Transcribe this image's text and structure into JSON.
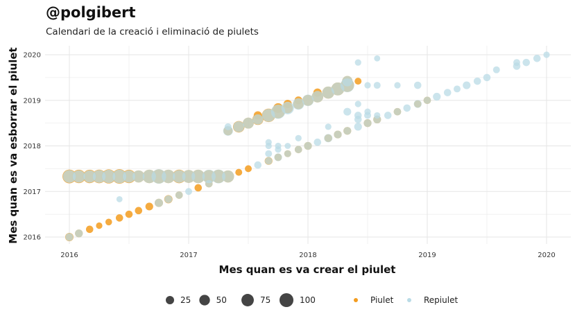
{
  "header": {
    "title": "@polgibert",
    "subtitle": "Calendari de la creació i eliminació de piulets"
  },
  "colors": {
    "piulet": "#f39c1f",
    "repiulet": "#b9dbe6",
    "overlap": "#c5c5a8",
    "grid": "#e5e5e5"
  },
  "chart_data": {
    "type": "scatter",
    "xlabel": "Mes quan es va crear el piulet",
    "ylabel": "Mes quan es va esborrar el piulet",
    "xlim": [
      2016,
      2020
    ],
    "ylim": [
      2016,
      2020
    ],
    "xticks": [
      "2016",
      "2017",
      "2018",
      "2019",
      "2020"
    ],
    "yticks": [
      "2016",
      "2017",
      "2018",
      "2019",
      "2020"
    ],
    "grid": true,
    "size_legend": {
      "values": [
        25,
        50,
        75,
        100
      ]
    },
    "color_legend": [
      "Piulet",
      "Repiulet"
    ],
    "series": [
      {
        "name": "Piulet",
        "points": [
          {
            "x": 2016.0,
            "y": 2017.33,
            "s": 65
          },
          {
            "x": 2016.08,
            "y": 2017.33,
            "s": 60
          },
          {
            "x": 2016.17,
            "y": 2017.33,
            "s": 60
          },
          {
            "x": 2016.25,
            "y": 2017.33,
            "s": 62
          },
          {
            "x": 2016.33,
            "y": 2017.33,
            "s": 70
          },
          {
            "x": 2016.42,
            "y": 2017.33,
            "s": 75
          },
          {
            "x": 2016.5,
            "y": 2017.33,
            "s": 60
          },
          {
            "x": 2016.58,
            "y": 2017.33,
            "s": 45
          },
          {
            "x": 2016.67,
            "y": 2017.33,
            "s": 60
          },
          {
            "x": 2016.75,
            "y": 2017.33,
            "s": 70
          },
          {
            "x": 2016.83,
            "y": 2017.33,
            "s": 60
          },
          {
            "x": 2016.92,
            "y": 2017.33,
            "s": 62
          },
          {
            "x": 2017.0,
            "y": 2017.33,
            "s": 55
          },
          {
            "x": 2017.08,
            "y": 2017.33,
            "s": 60
          },
          {
            "x": 2017.17,
            "y": 2017.33,
            "s": 55
          },
          {
            "x": 2017.25,
            "y": 2017.33,
            "s": 60
          },
          {
            "x": 2017.33,
            "y": 2017.33,
            "s": 45
          },
          {
            "x": 2016.0,
            "y": 2016.0,
            "s": 15
          },
          {
            "x": 2016.08,
            "y": 2016.08,
            "s": 12
          },
          {
            "x": 2016.17,
            "y": 2016.17,
            "s": 10
          },
          {
            "x": 2016.25,
            "y": 2016.25,
            "s": 6
          },
          {
            "x": 2016.33,
            "y": 2016.33,
            "s": 7
          },
          {
            "x": 2016.42,
            "y": 2016.42,
            "s": 10
          },
          {
            "x": 2016.5,
            "y": 2016.5,
            "s": 10
          },
          {
            "x": 2016.58,
            "y": 2016.58,
            "s": 10
          },
          {
            "x": 2016.67,
            "y": 2016.67,
            "s": 12
          },
          {
            "x": 2016.75,
            "y": 2016.75,
            "s": 15
          },
          {
            "x": 2016.83,
            "y": 2016.83,
            "s": 15
          },
          {
            "x": 2016.92,
            "y": 2016.92,
            "s": 10
          },
          {
            "x": 2017.08,
            "y": 2017.08,
            "s": 10
          },
          {
            "x": 2017.17,
            "y": 2017.17,
            "s": 10
          },
          {
            "x": 2017.33,
            "y": 2018.33,
            "s": 20
          },
          {
            "x": 2017.42,
            "y": 2018.42,
            "s": 40
          },
          {
            "x": 2017.5,
            "y": 2018.5,
            "s": 35
          },
          {
            "x": 2017.58,
            "y": 2018.58,
            "s": 35
          },
          {
            "x": 2017.58,
            "y": 2018.67,
            "s": 15
          },
          {
            "x": 2017.67,
            "y": 2018.67,
            "s": 60
          },
          {
            "x": 2017.75,
            "y": 2018.75,
            "s": 60
          },
          {
            "x": 2017.75,
            "y": 2018.83,
            "s": 25
          },
          {
            "x": 2017.83,
            "y": 2018.83,
            "s": 30
          },
          {
            "x": 2017.83,
            "y": 2018.92,
            "s": 15
          },
          {
            "x": 2017.92,
            "y": 2018.92,
            "s": 30
          },
          {
            "x": 2017.92,
            "y": 2019.0,
            "s": 12
          },
          {
            "x": 2018.0,
            "y": 2019.0,
            "s": 35
          },
          {
            "x": 2018.08,
            "y": 2019.08,
            "s": 40
          },
          {
            "x": 2018.08,
            "y": 2019.17,
            "s": 15
          },
          {
            "x": 2018.17,
            "y": 2019.17,
            "s": 45
          },
          {
            "x": 2018.25,
            "y": 2019.25,
            "s": 55
          },
          {
            "x": 2018.33,
            "y": 2019.33,
            "s": 60
          },
          {
            "x": 2018.33,
            "y": 2019.42,
            "s": 30
          },
          {
            "x": 2018.42,
            "y": 2019.42,
            "s": 8
          },
          {
            "x": 2017.42,
            "y": 2017.42,
            "s": 8
          },
          {
            "x": 2017.5,
            "y": 2017.5,
            "s": 8
          },
          {
            "x": 2017.67,
            "y": 2017.67,
            "s": 12
          },
          {
            "x": 2017.75,
            "y": 2017.75,
            "s": 10
          },
          {
            "x": 2017.83,
            "y": 2017.83,
            "s": 8
          },
          {
            "x": 2017.92,
            "y": 2017.92,
            "s": 10
          },
          {
            "x": 2018.0,
            "y": 2018.0,
            "s": 12
          },
          {
            "x": 2018.17,
            "y": 2018.17,
            "s": 12
          },
          {
            "x": 2018.25,
            "y": 2018.25,
            "s": 12
          },
          {
            "x": 2018.33,
            "y": 2018.33,
            "s": 12
          },
          {
            "x": 2018.5,
            "y": 2018.5,
            "s": 12
          },
          {
            "x": 2018.58,
            "y": 2018.58,
            "s": 12
          },
          {
            "x": 2018.75,
            "y": 2018.75,
            "s": 10
          },
          {
            "x": 2018.92,
            "y": 2018.92,
            "s": 10
          },
          {
            "x": 2019.0,
            "y": 2019.0,
            "s": 10
          }
        ]
      },
      {
        "name": "Repiulet",
        "points": [
          {
            "x": 2016.0,
            "y": 2017.33,
            "s": 55
          },
          {
            "x": 2016.08,
            "y": 2017.33,
            "s": 50
          },
          {
            "x": 2016.17,
            "y": 2017.33,
            "s": 50
          },
          {
            "x": 2016.25,
            "y": 2017.33,
            "s": 55
          },
          {
            "x": 2016.33,
            "y": 2017.33,
            "s": 60
          },
          {
            "x": 2016.42,
            "y": 2017.33,
            "s": 65
          },
          {
            "x": 2016.5,
            "y": 2017.33,
            "s": 50
          },
          {
            "x": 2016.58,
            "y": 2017.33,
            "s": 45
          },
          {
            "x": 2016.67,
            "y": 2017.33,
            "s": 60
          },
          {
            "x": 2016.75,
            "y": 2017.33,
            "s": 75
          },
          {
            "x": 2016.83,
            "y": 2017.33,
            "s": 60
          },
          {
            "x": 2016.92,
            "y": 2017.33,
            "s": 55
          },
          {
            "x": 2017.0,
            "y": 2017.33,
            "s": 55
          },
          {
            "x": 2017.08,
            "y": 2017.33,
            "s": 60
          },
          {
            "x": 2017.17,
            "y": 2017.33,
            "s": 60
          },
          {
            "x": 2017.25,
            "y": 2017.33,
            "s": 65
          },
          {
            "x": 2017.33,
            "y": 2017.33,
            "s": 45
          },
          {
            "x": 2016.0,
            "y": 2016.0,
            "s": 12
          },
          {
            "x": 2016.08,
            "y": 2016.08,
            "s": 12
          },
          {
            "x": 2016.42,
            "y": 2016.83,
            "s": 5
          },
          {
            "x": 2016.75,
            "y": 2016.75,
            "s": 15
          },
          {
            "x": 2016.83,
            "y": 2016.83,
            "s": 12
          },
          {
            "x": 2016.92,
            "y": 2016.92,
            "s": 10
          },
          {
            "x": 2017.0,
            "y": 2017.0,
            "s": 8
          },
          {
            "x": 2017.17,
            "y": 2017.17,
            "s": 10
          },
          {
            "x": 2017.33,
            "y": 2018.33,
            "s": 25
          },
          {
            "x": 2017.33,
            "y": 2018.42,
            "s": 8
          },
          {
            "x": 2017.42,
            "y": 2018.42,
            "s": 35
          },
          {
            "x": 2017.5,
            "y": 2018.5,
            "s": 35
          },
          {
            "x": 2017.58,
            "y": 2018.58,
            "s": 30
          },
          {
            "x": 2017.67,
            "y": 2018.67,
            "s": 55
          },
          {
            "x": 2017.75,
            "y": 2018.75,
            "s": 70
          },
          {
            "x": 2017.83,
            "y": 2018.83,
            "s": 50
          },
          {
            "x": 2017.92,
            "y": 2018.92,
            "s": 40
          },
          {
            "x": 2018.0,
            "y": 2019.0,
            "s": 40
          },
          {
            "x": 2018.08,
            "y": 2019.08,
            "s": 40
          },
          {
            "x": 2018.17,
            "y": 2019.17,
            "s": 45
          },
          {
            "x": 2018.25,
            "y": 2019.25,
            "s": 55
          },
          {
            "x": 2018.33,
            "y": 2019.33,
            "s": 65
          },
          {
            "x": 2018.33,
            "y": 2019.42,
            "s": 30
          },
          {
            "x": 2018.42,
            "y": 2019.83,
            "s": 6
          },
          {
            "x": 2018.58,
            "y": 2019.92,
            "s": 5
          },
          {
            "x": 2018.5,
            "y": 2019.33,
            "s": 6
          },
          {
            "x": 2018.58,
            "y": 2019.33,
            "s": 8
          },
          {
            "x": 2018.75,
            "y": 2019.33,
            "s": 6
          },
          {
            "x": 2018.92,
            "y": 2019.33,
            "s": 10
          },
          {
            "x": 2017.58,
            "y": 2017.58,
            "s": 10
          },
          {
            "x": 2017.67,
            "y": 2017.67,
            "s": 10
          },
          {
            "x": 2017.67,
            "y": 2017.83,
            "s": 8
          },
          {
            "x": 2017.67,
            "y": 2018.0,
            "s": 6
          },
          {
            "x": 2017.67,
            "y": 2018.08,
            "s": 6
          },
          {
            "x": 2017.75,
            "y": 2017.75,
            "s": 12
          },
          {
            "x": 2017.75,
            "y": 2017.92,
            "s": 6
          },
          {
            "x": 2017.75,
            "y": 2018.0,
            "s": 6
          },
          {
            "x": 2017.83,
            "y": 2017.83,
            "s": 8
          },
          {
            "x": 2017.83,
            "y": 2018.0,
            "s": 5
          },
          {
            "x": 2017.92,
            "y": 2017.92,
            "s": 10
          },
          {
            "x": 2017.92,
            "y": 2018.17,
            "s": 6
          },
          {
            "x": 2018.0,
            "y": 2018.0,
            "s": 12
          },
          {
            "x": 2018.08,
            "y": 2018.08,
            "s": 10
          },
          {
            "x": 2018.17,
            "y": 2018.17,
            "s": 15
          },
          {
            "x": 2018.17,
            "y": 2018.42,
            "s": 6
          },
          {
            "x": 2018.25,
            "y": 2018.25,
            "s": 12
          },
          {
            "x": 2018.33,
            "y": 2018.33,
            "s": 12
          },
          {
            "x": 2018.33,
            "y": 2018.75,
            "s": 12
          },
          {
            "x": 2018.42,
            "y": 2018.42,
            "s": 12
          },
          {
            "x": 2018.42,
            "y": 2018.58,
            "s": 10
          },
          {
            "x": 2018.42,
            "y": 2018.67,
            "s": 10
          },
          {
            "x": 2018.42,
            "y": 2018.92,
            "s": 6
          },
          {
            "x": 2018.5,
            "y": 2018.5,
            "s": 12
          },
          {
            "x": 2018.5,
            "y": 2018.67,
            "s": 8
          },
          {
            "x": 2018.5,
            "y": 2018.75,
            "s": 6
          },
          {
            "x": 2018.58,
            "y": 2018.58,
            "s": 12
          },
          {
            "x": 2018.58,
            "y": 2018.67,
            "s": 6
          },
          {
            "x": 2018.67,
            "y": 2018.67,
            "s": 10
          },
          {
            "x": 2018.75,
            "y": 2018.75,
            "s": 10
          },
          {
            "x": 2018.83,
            "y": 2018.83,
            "s": 10
          },
          {
            "x": 2018.92,
            "y": 2018.92,
            "s": 12
          },
          {
            "x": 2019.0,
            "y": 2019.0,
            "s": 10
          },
          {
            "x": 2019.08,
            "y": 2019.08,
            "s": 12
          },
          {
            "x": 2019.17,
            "y": 2019.17,
            "s": 10
          },
          {
            "x": 2019.25,
            "y": 2019.25,
            "s": 8
          },
          {
            "x": 2019.33,
            "y": 2019.33,
            "s": 12
          },
          {
            "x": 2019.42,
            "y": 2019.42,
            "s": 10
          },
          {
            "x": 2019.5,
            "y": 2019.5,
            "s": 10
          },
          {
            "x": 2019.58,
            "y": 2019.67,
            "s": 8
          },
          {
            "x": 2019.75,
            "y": 2019.75,
            "s": 10
          },
          {
            "x": 2019.75,
            "y": 2019.83,
            "s": 8
          },
          {
            "x": 2019.83,
            "y": 2019.83,
            "s": 10
          },
          {
            "x": 2019.92,
            "y": 2019.92,
            "s": 10
          },
          {
            "x": 2020.0,
            "y": 2020.0,
            "s": 6
          }
        ]
      }
    ]
  }
}
